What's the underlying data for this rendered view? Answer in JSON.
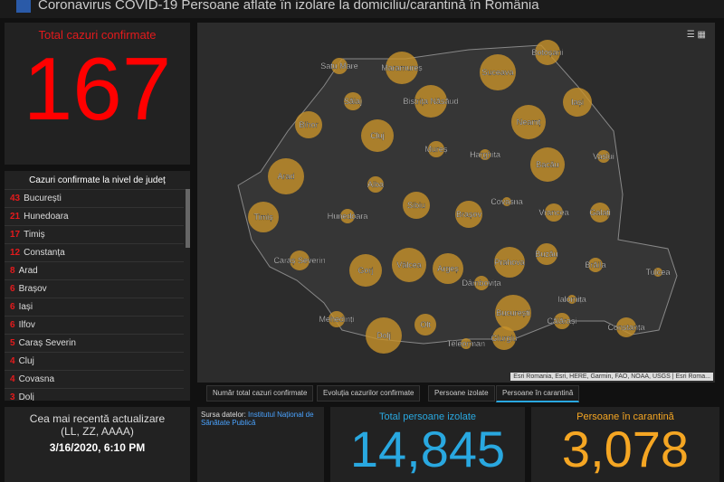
{
  "header": {
    "title": "Coronavirus COVID-19 Persoane aflate în izolare la domiciliu/carantină în România"
  },
  "total": {
    "title": "Total cazuri confirmate",
    "value": "167"
  },
  "list": {
    "title": "Cazuri confirmate la nivel de județ",
    "rows": [
      [
        "43",
        "București"
      ],
      [
        "21",
        "Hunedoara"
      ],
      [
        "17",
        "Timiș"
      ],
      [
        "12",
        "Constanța"
      ],
      [
        "8",
        "Arad"
      ],
      [
        "6",
        "Brașov"
      ],
      [
        "6",
        "Iași"
      ],
      [
        "6",
        "Ilfov"
      ],
      [
        "5",
        "Caraș Severin"
      ],
      [
        "4",
        "Cluj"
      ],
      [
        "4",
        "Covasna"
      ],
      [
        "3",
        "Dolj"
      ]
    ]
  },
  "update": {
    "title": "Cea mai recentă actualizare",
    "format": "(LL, ZZ, AAAA)",
    "value": "3/16/2020, 6:10 PM"
  },
  "source": {
    "label": "Sursa datelor:",
    "link": "Institutul Național de Sănătate Publică"
  },
  "isolated": {
    "title": "Total persoane izolate",
    "value": "14,845"
  },
  "quarantine": {
    "title": "Persoane în carantină",
    "value": "3,078"
  },
  "tabs": [
    "Număr total cazuri confirmate",
    "Evoluția cazurilor confirmate",
    "Persoane izolate",
    "Persoane în carantină"
  ],
  "map": {
    "attribution": "Esri Romania, Esri, HERE, Garmin, FAO, NOAA, USGS | Esri Roma...",
    "labels": [
      "Satu Mare",
      "Maramureș",
      "Suceava",
      "Botoșani",
      "Sălaj",
      "Bistrița Năsăud",
      "Iași",
      "Neamț",
      "Bihor",
      "Cluj",
      "Mureș",
      "Harghita",
      "Bacău",
      "Vaslui",
      "Arad",
      "Alba",
      "Sibiu",
      "Covasna",
      "Brașov",
      "Vrancea",
      "Galați",
      "Timiș",
      "Hunedoara",
      "Caraș Severin",
      "Gorj",
      "Vâlcea",
      "Argeș",
      "Prahova",
      "Buzău",
      "Brăila",
      "Tulcea",
      "Dâmbovița",
      "Ialomița",
      "Mehedinți",
      "București",
      "Călărași",
      "Olt",
      "Dolj",
      "Teleorman",
      "Giurgiu",
      "Constanța"
    ]
  }
}
